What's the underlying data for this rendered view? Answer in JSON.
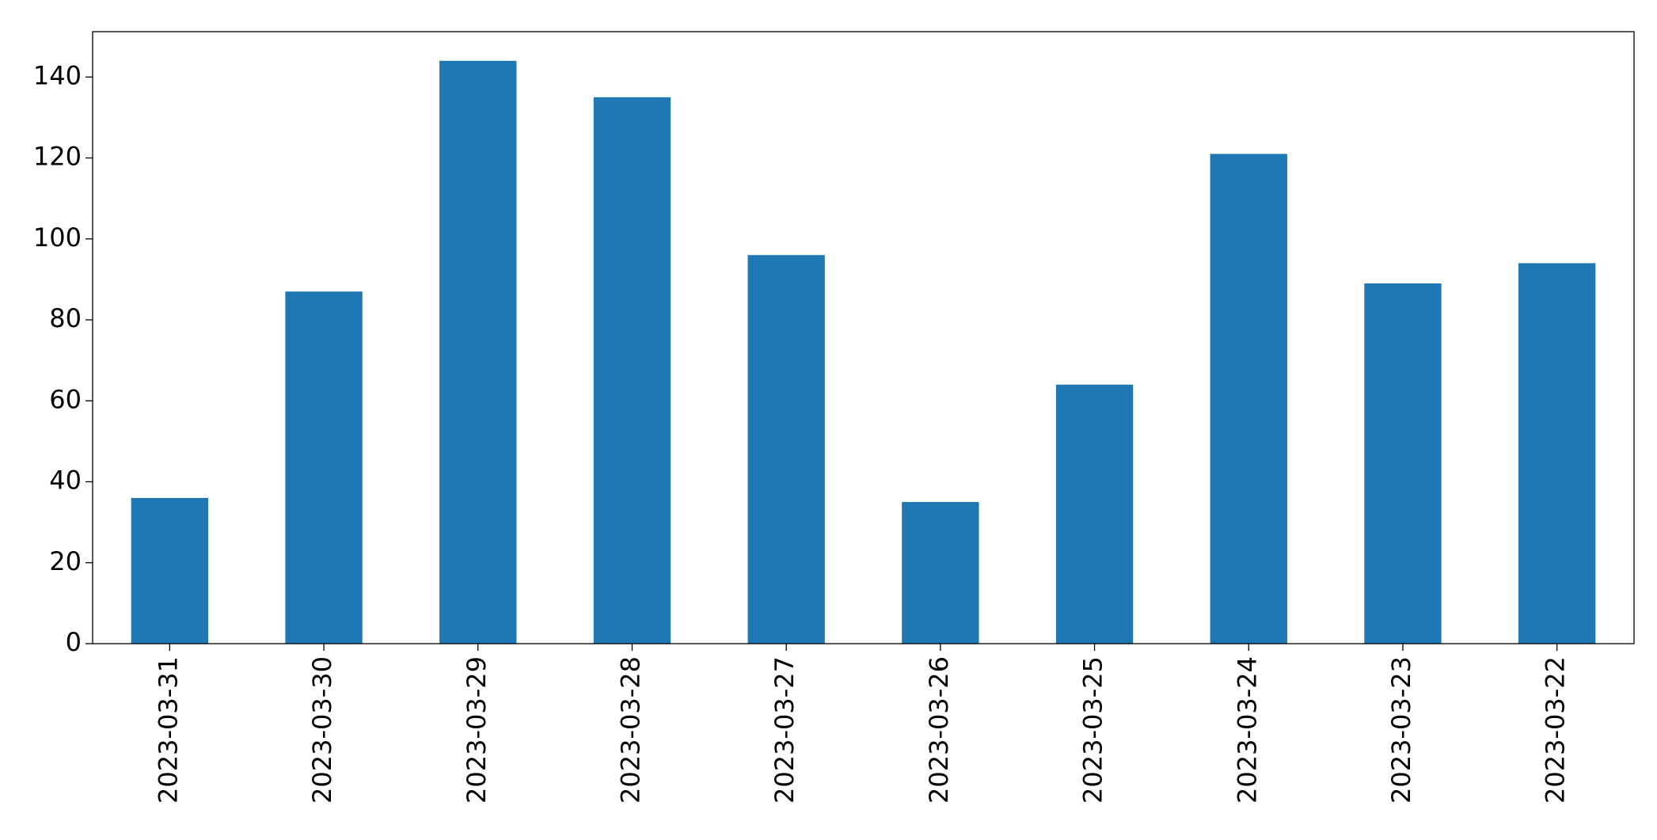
{
  "chart_data": {
    "type": "bar",
    "categories": [
      "2023-03-31",
      "2023-03-30",
      "2023-03-29",
      "2023-03-28",
      "2023-03-27",
      "2023-03-26",
      "2023-03-25",
      "2023-03-24",
      "2023-03-23",
      "2023-03-22"
    ],
    "values": [
      36,
      87,
      144,
      135,
      96,
      35,
      64,
      121,
      89,
      94
    ],
    "color": "#1f77b4",
    "ylim": [
      0,
      151.2
    ],
    "yticks": [
      0,
      20,
      40,
      60,
      80,
      100,
      120,
      140
    ],
    "grid": false
  }
}
